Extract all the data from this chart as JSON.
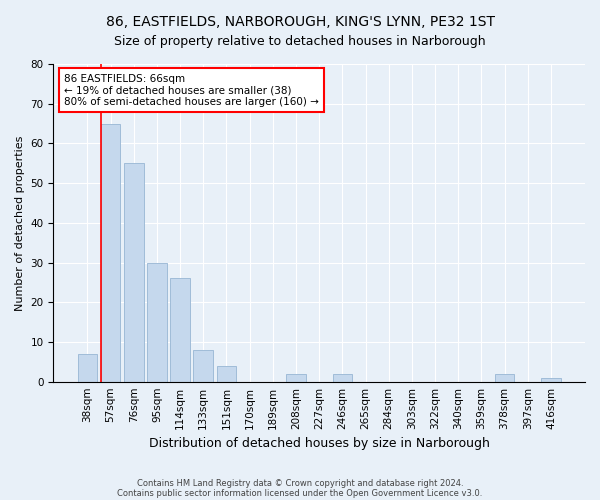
{
  "title1": "86, EASTFIELDS, NARBOROUGH, KING'S LYNN, PE32 1ST",
  "title2": "Size of property relative to detached houses in Narborough",
  "xlabel": "Distribution of detached houses by size in Narborough",
  "ylabel": "Number of detached properties",
  "categories": [
    "38sqm",
    "57sqm",
    "76sqm",
    "95sqm",
    "114sqm",
    "133sqm",
    "151sqm",
    "170sqm",
    "189sqm",
    "208sqm",
    "227sqm",
    "246sqm",
    "265sqm",
    "284sqm",
    "303sqm",
    "322sqm",
    "340sqm",
    "359sqm",
    "378sqm",
    "397sqm",
    "416sqm"
  ],
  "values": [
    7,
    65,
    55,
    30,
    26,
    8,
    4,
    0,
    0,
    2,
    0,
    2,
    0,
    0,
    0,
    0,
    0,
    0,
    2,
    0,
    1
  ],
  "bar_color": "#c5d8ed",
  "bar_edge_color": "#a0bcd8",
  "red_line_index": 1,
  "annotation_line1": "86 EASTFIELDS: 66sqm",
  "annotation_line2": "← 19% of detached houses are smaller (38)",
  "annotation_line3": "80% of semi-detached houses are larger (160) →",
  "annotation_box_color": "white",
  "annotation_box_edge": "red",
  "ylim": [
    0,
    80
  ],
  "yticks": [
    0,
    10,
    20,
    30,
    40,
    50,
    60,
    70,
    80
  ],
  "background_color": "#e8f0f8",
  "plot_background": "#e8f0f8",
  "footer1": "Contains HM Land Registry data © Crown copyright and database right 2024.",
  "footer2": "Contains public sector information licensed under the Open Government Licence v3.0.",
  "title1_fontsize": 10,
  "title2_fontsize": 9,
  "xlabel_fontsize": 9,
  "ylabel_fontsize": 8,
  "tick_fontsize": 7.5,
  "annotation_fontsize": 7.5,
  "footer_fontsize": 6
}
